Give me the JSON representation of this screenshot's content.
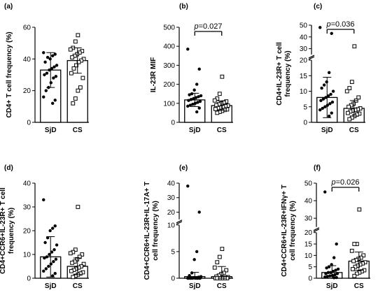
{
  "chart_data": [
    {
      "panel_label": "(a)",
      "type": "bar",
      "ylabel": "CD4+ T cell frequency (%)",
      "ylim": [
        0,
        60
      ],
      "yticks": [
        0,
        20,
        40,
        60
      ],
      "categories": [
        "SjD",
        "CS"
      ],
      "series": [
        {
          "group": "SjD",
          "marker": "filled-circle",
          "mean": 33,
          "sd": 11,
          "points": [
            44,
            43,
            42,
            40,
            41,
            38,
            36,
            35,
            34,
            33,
            31,
            30,
            29,
            28,
            25,
            22,
            20,
            16,
            14,
            12
          ]
        },
        {
          "group": "CS",
          "marker": "open-square",
          "mean": 39,
          "sd": 8,
          "points": [
            55,
            51,
            47,
            46,
            45,
            44,
            43,
            42,
            41,
            40,
            39,
            38,
            36,
            34,
            31,
            28,
            22,
            20,
            15,
            12
          ]
        }
      ]
    },
    {
      "panel_label": "(b)",
      "type": "bar",
      "ylabel": "IL-23R MIF",
      "ylim": [
        0,
        500
      ],
      "yticks": [
        0,
        100,
        200,
        300,
        400,
        500
      ],
      "categories": [
        "SjD",
        "CS"
      ],
      "significance": {
        "text": "p=0.027",
        "p_symbol": "p",
        "p_value": "=0.027"
      },
      "series": [
        {
          "group": "SjD",
          "marker": "filled-circle",
          "mean": 118,
          "sd": 35,
          "points": [
            385,
            280,
            200,
            170,
            150,
            145,
            140,
            135,
            130,
            125,
            120,
            115,
            110,
            105,
            100,
            95,
            90,
            85,
            75,
            55
          ]
        },
        {
          "group": "CS",
          "marker": "open-square",
          "mean": 88,
          "sd": 25,
          "points": [
            240,
            150,
            125,
            115,
            110,
            105,
            100,
            95,
            90,
            88,
            85,
            80,
            78,
            75,
            70,
            68,
            65,
            60,
            55,
            50
          ]
        }
      ]
    },
    {
      "panel_label": "(c)",
      "type": "bar",
      "ylabel": "CD4+IL-23R+ T cell frequency (%)",
      "y_axis_break": {
        "lower": [
          0,
          20
        ],
        "upper": [
          25,
          50
        ]
      },
      "yticks": [
        0,
        5,
        10,
        15,
        20,
        30,
        40,
        50
      ],
      "categories": [
        "SjD",
        "CS"
      ],
      "significance": {
        "text": "p=0.036",
        "p_symbol": "p",
        "p_value": "=0.036"
      },
      "series": [
        {
          "group": "SjD",
          "marker": "filled-circle",
          "mean": 8,
          "sd": 6.5,
          "points": [
            48,
            43,
            16,
            13,
            12,
            11,
            10,
            9,
            8.5,
            8,
            7.5,
            7,
            6.5,
            6,
            5.5,
            5,
            4.5,
            4,
            3,
            2
          ]
        },
        {
          "group": "CS",
          "marker": "open-square",
          "mean": 4.5,
          "sd": 2.5,
          "points": [
            32,
            13,
            11,
            10,
            8,
            7,
            6,
            5.5,
            5,
            4.5,
            4.2,
            4,
            3.8,
            3.5,
            3,
            2.8,
            2.5,
            2,
            1.5,
            1
          ]
        }
      ]
    },
    {
      "panel_label": "(d)",
      "type": "bar",
      "ylabel": "CD4+CCR6+IL-23R+ T cell frequency (%)",
      "ylim": [
        0,
        40
      ],
      "yticks": [
        0,
        10,
        20,
        30,
        40
      ],
      "categories": [
        "SjD",
        "CS"
      ],
      "series": [
        {
          "group": "SjD",
          "marker": "filled-circle",
          "mean": 9,
          "sd": 8.5,
          "points": [
            33,
            22,
            21,
            20,
            17,
            15,
            14,
            12,
            11,
            10,
            9,
            8.5,
            8,
            7,
            6,
            5,
            4,
            3,
            2,
            1
          ]
        },
        {
          "group": "CS",
          "marker": "open-square",
          "mean": 5,
          "sd": 3.5,
          "points": [
            30,
            12,
            11,
            10.5,
            10,
            9,
            8,
            7,
            6.5,
            6,
            5,
            4.5,
            4,
            3.5,
            3,
            2.5,
            2,
            1.5,
            1,
            0.5
          ]
        }
      ]
    },
    {
      "panel_label": "(e)",
      "type": "bar",
      "ylabel": "CD4+CCR6+IL-23R+IL-17A+ T cell frequency (%)",
      "y_axis_break": {
        "lower": [
          0,
          10
        ],
        "upper": [
          15,
          40
        ]
      },
      "yticks": [
        0,
        5,
        10,
        20,
        30,
        40
      ],
      "categories": [
        "SjD",
        "CS"
      ],
      "series": [
        {
          "group": "SjD",
          "marker": "filled-circle",
          "mean": 0.3,
          "sd": 0.8,
          "points": [
            38,
            20,
            5,
            3.5,
            1,
            0.5,
            0.3,
            0.2,
            0.1,
            0.1,
            0,
            0,
            0,
            0,
            0,
            0,
            0,
            0,
            0,
            0
          ]
        },
        {
          "group": "CS",
          "marker": "open-square",
          "mean": 0.3,
          "sd": 1.9,
          "points": [
            5.5,
            4,
            3,
            2,
            1.5,
            1,
            0.8,
            0.5,
            0.3,
            0.2,
            0.1,
            0.1,
            0,
            0,
            0,
            0,
            0,
            0,
            0,
            0
          ]
        }
      ]
    },
    {
      "panel_label": "(f)",
      "type": "bar",
      "ylabel": "CD4+CCR6+IL-23R+IFNγ+ T cell frequency (%)",
      "y_axis_break": {
        "lower": [
          0,
          20
        ],
        "upper": [
          25,
          50
        ]
      },
      "yticks": [
        0,
        5,
        10,
        15,
        20,
        30,
        40,
        50
      ],
      "categories": [
        "SjD",
        "CS"
      ],
      "significance": {
        "text": "p=0.026",
        "p_symbol": "p",
        "p_value": "=0.026"
      },
      "series": [
        {
          "group": "SjD",
          "marker": "filled-circle",
          "mean": 2.5,
          "sd": 3,
          "points": [
            45,
            15,
            9,
            6,
            5,
            4.5,
            4,
            3.5,
            3,
            2.5,
            2.5,
            2,
            2,
            1.5,
            1.2,
            1,
            0.8,
            0.5,
            0.3,
            0.2
          ]
        },
        {
          "group": "CS",
          "marker": "open-square",
          "mean": 7.5,
          "sd": 4,
          "points": [
            35,
            15,
            15,
            12,
            10,
            9,
            8.5,
            8,
            7.5,
            7,
            6.5,
            6,
            5.5,
            5,
            4,
            3.5,
            3,
            2.5,
            2,
            1
          ]
        }
      ]
    }
  ]
}
